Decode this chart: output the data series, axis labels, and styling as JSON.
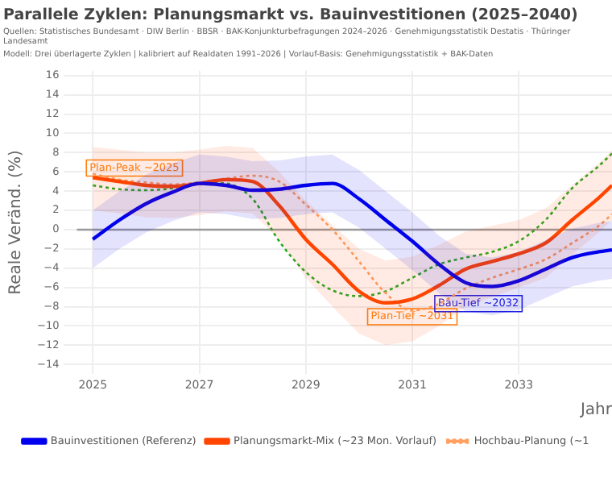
{
  "chart_data": {
    "type": "line",
    "title": "Parallele Zyklen: Planungsmarkt vs. Bauinvestitionen (2025–2040)",
    "subtitle": "Quellen: Statistisches Bundesamt · DIW Berlin · BBSR · BAK-Konjunkturbefragungen 2024–2026 · Genehmigungsstatistik Destatis · Thüringer Landesamt",
    "xlabel": "Jahr",
    "ylabel": "Reale Veränd. (%)",
    "x": [
      2025,
      2025.5,
      2026,
      2026.5,
      2027,
      2027.5,
      2028,
      2028.5,
      2029,
      2029.5,
      2030,
      2030.5,
      2031,
      2031.5,
      2032,
      2032.5,
      2033,
      2033.5,
      2034,
      2034.5,
      2034.75
    ],
    "series": [
      {
        "name": "Bauinvestitionen (Referenz)",
        "color": "#0000ee",
        "line_style": "solid",
        "values": [
          -1.0,
          1.0,
          2.7,
          3.9,
          4.8,
          4.6,
          4.1,
          4.2,
          4.6,
          4.8,
          3.2,
          1.0,
          -1.2,
          -3.6,
          -5.5,
          -5.9,
          -5.3,
          -4.1,
          -2.9,
          -2.3,
          -2.1
        ],
        "lower": [
          -4.0,
          -2.0,
          -0.3,
          0.9,
          1.8,
          1.6,
          1.1,
          1.2,
          1.6,
          1.8,
          0.2,
          -2.0,
          -4.2,
          -6.6,
          -8.5,
          -8.9,
          -8.3,
          -7.1,
          -5.9,
          -5.3,
          -5.1
        ],
        "upper": [
          2.0,
          4.0,
          5.7,
          6.9,
          7.8,
          7.6,
          7.1,
          7.2,
          7.6,
          7.8,
          6.2,
          4.0,
          1.8,
          -0.6,
          -2.5,
          -2.9,
          -2.3,
          -1.1,
          0.1,
          0.7,
          0.9
        ]
      },
      {
        "name": "Planungsmarkt-Mix (~23 Mon. Vorlauf)",
        "color": "#ff4500",
        "line_style": "solid",
        "values": [
          5.4,
          5.0,
          4.6,
          4.5,
          4.8,
          5.2,
          5.0,
          2.5,
          -1.0,
          -3.6,
          -6.4,
          -7.6,
          -7.2,
          -5.8,
          -4.1,
          -3.3,
          -2.5,
          -1.4,
          1.0,
          3.3,
          4.6
        ],
        "lower": [
          2.0,
          1.7,
          1.3,
          1.2,
          1.5,
          1.9,
          1.7,
          -1.0,
          -5.0,
          -8.0,
          -10.8,
          -12.0,
          -11.6,
          -10.0,
          -8.0,
          -7.0,
          -6.0,
          -5.0,
          -2.6,
          -0.3,
          1.0
        ],
        "upper": [
          8.6,
          8.3,
          8.0,
          8.0,
          8.3,
          8.7,
          8.5,
          6.0,
          3.0,
          0.5,
          -2.0,
          -3.2,
          -2.8,
          -1.6,
          -0.2,
          0.4,
          1.0,
          2.2,
          4.6,
          6.9,
          8.2
        ]
      },
      {
        "name": "Hochbau-Planung (~1",
        "color": "#ffa060",
        "line_style": "dotted",
        "values": [
          5.8,
          5.2,
          4.9,
          4.7,
          4.9,
          5.3,
          5.6,
          5.0,
          2.6,
          0.0,
          -3.3,
          -6.6,
          -8.4,
          -7.7,
          -6.1,
          -5.0,
          -4.1,
          -3.1,
          -1.4,
          0.4,
          1.6
        ]
      },
      {
        "color": "#22aa22",
        "line_style": "dotted",
        "values": [
          4.6,
          4.2,
          4.1,
          4.3,
          4.9,
          4.8,
          3.2,
          -1.2,
          -4.4,
          -6.3,
          -6.9,
          -6.4,
          -5.0,
          -3.6,
          -2.9,
          -2.3,
          -1.2,
          1.0,
          4.3,
          6.6,
          7.9
        ]
      }
    ],
    "xlim": [
      2024.7,
      2034.75
    ],
    "xticks": [
      2025,
      2027,
      2029,
      2031,
      2033
    ],
    "ylim": [
      -15,
      16.5
    ],
    "yticks": [
      -14,
      -12,
      -10,
      -8,
      -6,
      -4,
      -2,
      0,
      2,
      4,
      6,
      8,
      10,
      12,
      14,
      16
    ],
    "ref_lines": [
      {
        "axis": "y",
        "value": 0,
        "color": "#999999"
      }
    ],
    "annotations": [
      "Modell: Drei überlagerte Zyklen | kalibriert auf Realdaten 1991–2026 | Vorlauf-Basis: Genehmigungsstatistik + BAK-Daten",
      {
        "text": "Plan-Peak ~2025",
        "x": 2025,
        "y": 5.4
      },
      {
        "text": "Plan-Tief ~2031",
        "x": 2031,
        "y": -7.2
      },
      {
        "text": "Bau-Tief ~2032",
        "x": 2032,
        "y": -5.5
      }
    ],
    "grid": true,
    "legend": "bottom",
    "marker": "none"
  }
}
